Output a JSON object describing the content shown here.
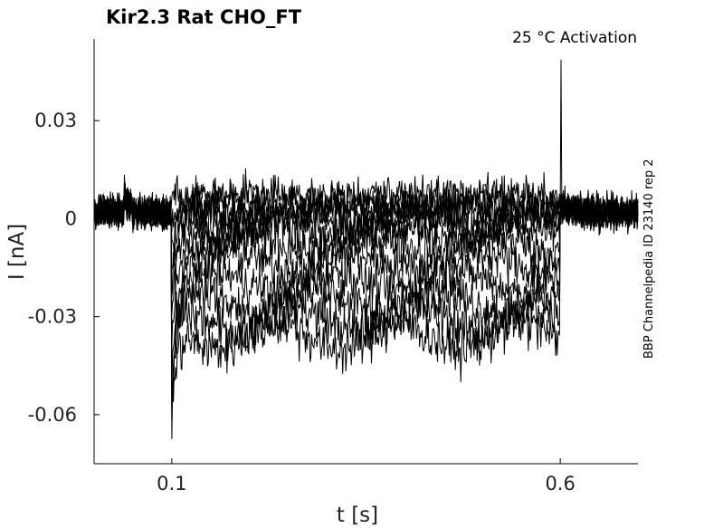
{
  "chart_data": {
    "type": "line",
    "title": "Kir2.3  Rat  CHO_FT",
    "subtitle": "25 °C  Activation",
    "side_label": "BBP Channelpedia ID 23140 rep 2",
    "xlabel": "t [s]",
    "ylabel": "I [nA]",
    "xlim": [
      0.0,
      0.7
    ],
    "ylim": [
      -0.075,
      0.055
    ],
    "xticks": [
      0.1,
      0.6
    ],
    "xtick_labels": [
      "0.1",
      "0.6"
    ],
    "yticks": [
      -0.06,
      -0.03,
      0,
      0.03
    ],
    "ytick_labels": [
      "-0.06",
      "-0.03",
      "0",
      "0.03"
    ],
    "grid": false,
    "line_color": "#000000",
    "sweeps": {
      "count": 12,
      "step_on": 0.1,
      "step_off": 0.6,
      "holding_current": 0.002,
      "steady_state_currents": [
        0.007,
        0.005,
        0.003,
        0.001,
        -0.001,
        -0.004,
        -0.008,
        -0.013,
        -0.019,
        -0.025,
        -0.031,
        -0.036
      ],
      "onset_peak_current": -0.065,
      "tail_spike_current": 0.045
    }
  }
}
